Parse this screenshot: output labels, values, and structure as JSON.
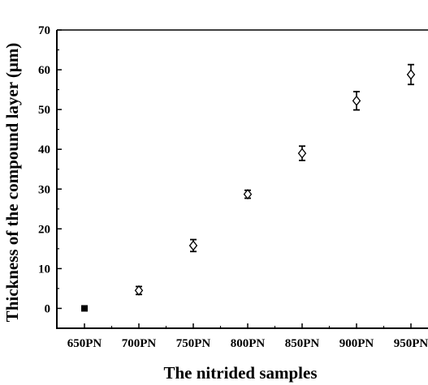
{
  "chart_data": {
    "type": "scatter",
    "title": "",
    "xlabel": "The nitrided samples",
    "ylabel": "Thickness of the compound layer (μm)",
    "categories": [
      "650PN",
      "700PN",
      "750PN",
      "800PN",
      "850PN",
      "900PN",
      "950PN"
    ],
    "ylim": [
      -5,
      70
    ],
    "yticks": [
      "0",
      "10",
      "20",
      "30",
      "40",
      "50",
      "60",
      "70"
    ],
    "grid": false,
    "legend": "none",
    "series": [
      {
        "values": [
          0,
          4.5,
          15.8,
          28.7,
          39.0,
          52.2,
          58.8
        ],
        "errors": [
          0,
          1.0,
          1.5,
          1.0,
          1.8,
          2.3,
          2.5
        ],
        "markers": [
          "filled-square",
          "open-diamond",
          "open-diamond",
          "open-diamond",
          "open-diamond",
          "open-diamond",
          "open-diamond"
        ]
      }
    ],
    "colors": {
      "marker": "#000000",
      "axis": "#000000",
      "background": "#ffffff"
    }
  }
}
